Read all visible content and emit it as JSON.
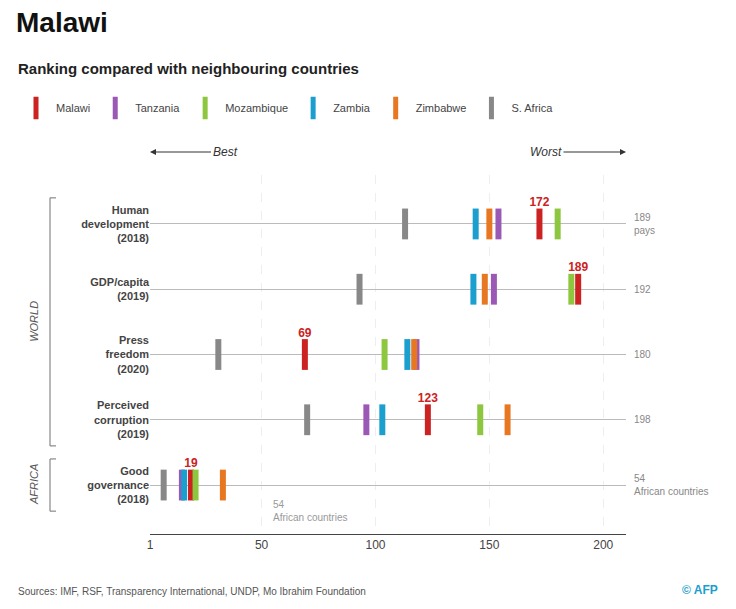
{
  "chart_data": {
    "type": "scatter",
    "title": "Malawi",
    "subtitle": "Ranking compared with neighbouring countries",
    "categories": [
      "Human\ndevelopment\n(2018)",
      "GDP/capita\n(2019)",
      "Press\nfreedom\n(2020)",
      "Perceived\ncorruption\n(2019)",
      "Good\ngovernance\n(2018)"
    ],
    "series": [
      {
        "name": "Malawi",
        "color": "#cc2222",
        "values": [
          172,
          189,
          69,
          123,
          19
        ],
        "data_labels": true
      },
      {
        "name": "Tanzania",
        "color": "#9b59b6",
        "values": [
          154,
          152,
          118,
          96,
          15
        ]
      },
      {
        "name": "Mozambique",
        "color": "#8dc63f",
        "values": [
          180,
          186,
          104,
          146,
          21
        ]
      },
      {
        "name": "Zambia",
        "color": "#1a9fce",
        "values": [
          144,
          143,
          114,
          103,
          16
        ]
      },
      {
        "name": "Zimbabwe",
        "color": "#e87722",
        "values": [
          150,
          148,
          117,
          158,
          33
        ]
      },
      {
        "name": "S. Africa",
        "color": "#888888",
        "values": [
          113,
          93,
          31,
          70,
          7
        ]
      }
    ],
    "marker": "line-ns",
    "xlim": [
      1,
      210
    ],
    "xticks": [
      1,
      50,
      100,
      150,
      200
    ],
    "grid": true,
    "legend": "top",
    "sections": [
      "WORLD",
      "WORLD",
      "WORLD",
      "WORLD",
      "AFRICA"
    ],
    "right_labels": [
      "189\npays",
      "192",
      "180",
      "198",
      "54\nAfrican countries"
    ],
    "annotations": [
      {
        "text": "54\nAfrican countries",
        "x": 54,
        "category": "Good\ngovernance\n(2018)"
      }
    ],
    "best_label": "Best",
    "worst_label": "Worst",
    "source": "Sources: IMF, RSF, Transparency International, UNDP, Mo Ibrahim Foundation",
    "credit": "© AFP"
  }
}
